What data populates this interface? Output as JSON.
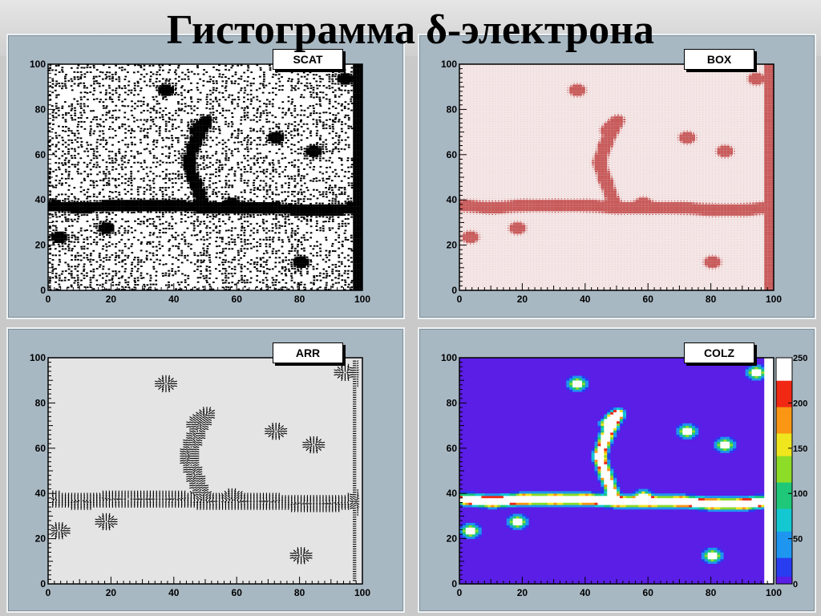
{
  "title": "Гистограмма δ-электрона",
  "chart_data": [
    {
      "type": "heatmap",
      "draw_option": "SCAT",
      "xlim": [
        0,
        100
      ],
      "ylim": [
        0,
        100
      ],
      "x_ticks": [
        "0",
        "20",
        "40",
        "60",
        "80",
        "100"
      ],
      "y_ticks": [
        "0",
        "20",
        "40",
        "60",
        "80",
        "100"
      ],
      "track": [
        [
          0,
          37
        ],
        [
          10,
          36
        ],
        [
          20,
          37
        ],
        [
          30,
          37
        ],
        [
          40,
          37
        ],
        [
          50,
          36
        ],
        [
          60,
          36
        ],
        [
          70,
          36
        ],
        [
          80,
          35
        ],
        [
          90,
          35
        ],
        [
          97,
          36
        ]
      ],
      "branch": [
        [
          49,
          37
        ],
        [
          46,
          48
        ],
        [
          44,
          56
        ],
        [
          46,
          64
        ],
        [
          48,
          70
        ],
        [
          50,
          75
        ],
        [
          46,
          70
        ]
      ],
      "blobs": [
        [
          37,
          88
        ],
        [
          72,
          67
        ],
        [
          84,
          61
        ],
        [
          94,
          93
        ],
        [
          3,
          23
        ],
        [
          80,
          12
        ],
        [
          18,
          27
        ],
        [
          58,
          38
        ]
      ]
    },
    {
      "type": "heatmap",
      "draw_option": "BOX",
      "xlim": [
        0,
        100
      ],
      "ylim": [
        0,
        100
      ],
      "x_ticks": [
        "0",
        "20",
        "40",
        "60",
        "80",
        "100"
      ],
      "y_ticks": [
        "0",
        "20",
        "40",
        "60",
        "80",
        "100"
      ]
    },
    {
      "type": "heatmap",
      "draw_option": "ARR",
      "xlim": [
        0,
        100
      ],
      "ylim": [
        0,
        100
      ],
      "x_ticks": [
        "0",
        "20",
        "40",
        "60",
        "80",
        "100"
      ],
      "y_ticks": [
        "0",
        "20",
        "40",
        "60",
        "80",
        "100"
      ]
    },
    {
      "type": "heatmap",
      "draw_option": "COLZ",
      "xlim": [
        0,
        100
      ],
      "ylim": [
        0,
        100
      ],
      "zlim": [
        0,
        250
      ],
      "x_ticks": [
        "0",
        "20",
        "40",
        "60",
        "80",
        "100"
      ],
      "y_ticks": [
        "0",
        "20",
        "40",
        "60",
        "80",
        "100"
      ],
      "z_ticks": [
        "0",
        "50",
        "100",
        "150",
        "200",
        "250"
      ]
    }
  ],
  "colors": {
    "pad": "#a8b8c3",
    "box_fill": "#c85a5a",
    "colz_background": "#5a1ee6"
  }
}
